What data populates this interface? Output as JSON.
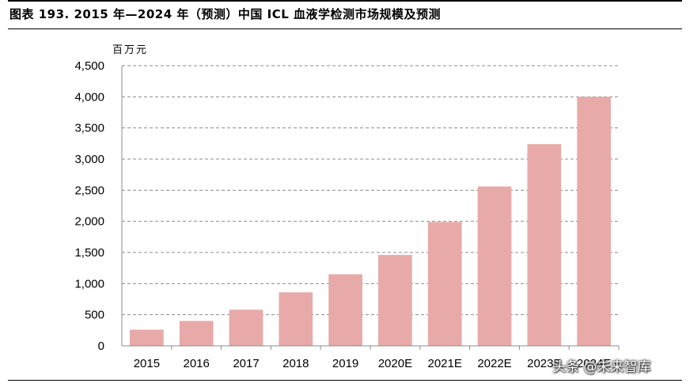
{
  "header": {
    "title": "图表 193. 2015 年—2024 年（预测）中国 ICL 血液学检测市场规模及预测"
  },
  "chart_data": {
    "type": "bar",
    "title": "",
    "ylabel": "百万元",
    "xlabel": "",
    "categories": [
      "2015",
      "2016",
      "2017",
      "2018",
      "2019",
      "2020E",
      "2021E",
      "2022E",
      "2023E",
      "2024E"
    ],
    "values": [
      260,
      400,
      580,
      860,
      1150,
      1460,
      1990,
      2560,
      3240,
      4000
    ],
    "ylim": [
      0,
      4500
    ],
    "yticks": [
      0,
      500,
      1000,
      1500,
      2000,
      2500,
      3000,
      3500,
      4000,
      4500
    ],
    "ytick_labels": [
      "0",
      "500",
      "1,000",
      "1,500",
      "2,000",
      "2,500",
      "3,000",
      "3,500",
      "4,000",
      "4,500"
    ],
    "grid": "horizontal dashed",
    "bar_color": "#e8aaa8"
  },
  "watermark": {
    "text": "头条 @未来智库"
  }
}
